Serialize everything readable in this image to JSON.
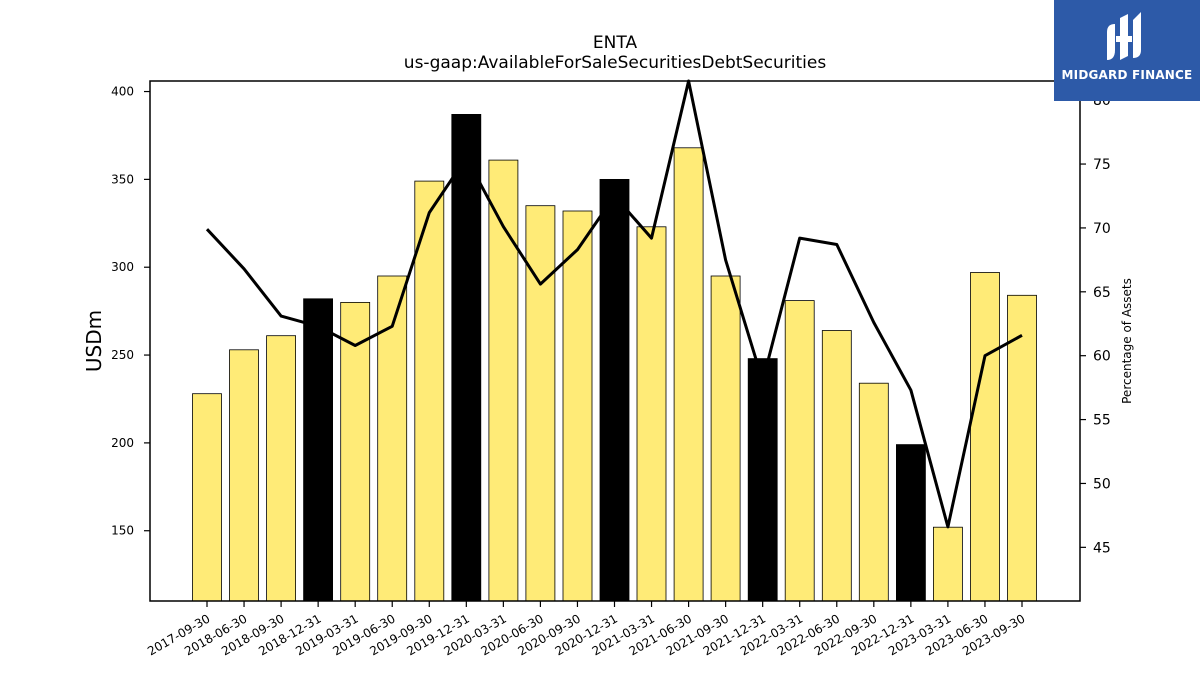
{
  "chart_data": {
    "type": "bar",
    "title": "ENTA",
    "subtitle": "us-gaap:AvailableForSaleSecuritiesDebtSecurities",
    "ylabel": "USDm",
    "y2label": "Percentage of Assets",
    "ylim": [
      110,
      406
    ],
    "y2lim": [
      40.8,
      81.5
    ],
    "yticks": [
      150,
      200,
      250,
      300,
      350,
      400
    ],
    "y2ticks": [
      45,
      50,
      55,
      60,
      65,
      70,
      75,
      80
    ],
    "categories": [
      "2017-09-30",
      "2018-06-30",
      "2018-09-30",
      "2018-12-31",
      "2019-03-31",
      "2019-06-30",
      "2019-09-30",
      "2019-12-31",
      "2020-03-31",
      "2020-06-30",
      "2020-09-30",
      "2020-12-31",
      "2021-03-31",
      "2021-06-30",
      "2021-09-30",
      "2021-12-31",
      "2022-03-31",
      "2022-06-30",
      "2022-09-30",
      "2022-12-31",
      "2023-03-31",
      "2023-06-30",
      "2023-09-30"
    ],
    "series": [
      {
        "type": "bar",
        "axis": "left",
        "values": [
          228,
          253,
          261,
          282,
          280,
          295,
          349,
          387,
          361,
          335,
          332,
          350,
          323,
          368,
          295,
          248,
          281,
          264,
          234,
          199,
          152,
          297,
          284
        ],
        "highlighted": [
          false,
          false,
          false,
          true,
          false,
          false,
          false,
          true,
          false,
          false,
          false,
          true,
          false,
          false,
          false,
          true,
          false,
          false,
          false,
          true,
          false,
          false,
          false
        ]
      },
      {
        "type": "line",
        "axis": "right",
        "values": [
          69.9,
          66.8,
          63.1,
          62.3,
          60.8,
          62.3,
          71.2,
          75.5,
          70.1,
          65.6,
          68.3,
          72.5,
          69.2,
          81.5,
          67.5,
          58.0,
          69.2,
          68.7,
          62.6,
          57.3,
          46.6,
          60.0,
          61.6
        ]
      }
    ],
    "colors": {
      "bar": "#ffeb77",
      "bar_highlight": "#000000",
      "line": "#000000",
      "logo_bg": "#2d5aa8"
    },
    "grid": false
  },
  "logo": {
    "text": "MIDGARD FINANCE",
    "icon": "midgard-logo-icon"
  }
}
